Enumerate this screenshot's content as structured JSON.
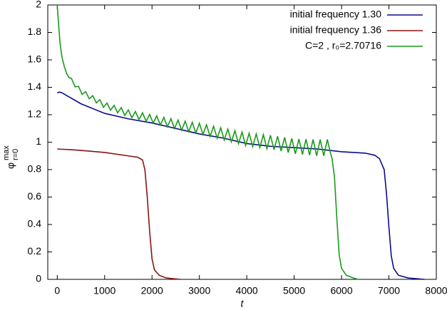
{
  "chart_data": {
    "type": "line",
    "xlabel": "t",
    "ylabel": {
      "base": "φ",
      "sup": "max",
      "sub": "r=0"
    },
    "xlim": [
      -200,
      8000
    ],
    "xticks": [
      0,
      1000,
      2000,
      3000,
      4000,
      5000,
      6000,
      7000,
      8000
    ],
    "ylim": [
      0,
      2
    ],
    "yticks": [
      0,
      0.2,
      0.4,
      0.6,
      0.8,
      1,
      1.2,
      1.4,
      1.6,
      1.8,
      2
    ],
    "legend": "top-right",
    "series": [
      {
        "name": "initial frequency  1.30",
        "color": "#0b0b8c",
        "x": [
          0,
          50,
          100,
          500,
          1000,
          1500,
          2000,
          2500,
          3000,
          3500,
          4000,
          4500,
          5000,
          5500,
          6000,
          6500,
          6700,
          6800,
          6900,
          6950,
          7000,
          7050,
          7100,
          7200,
          7400,
          7750
        ],
        "values": [
          1.36,
          1.365,
          1.36,
          1.28,
          1.21,
          1.17,
          1.14,
          1.1,
          1.06,
          1.03,
          0.99,
          0.97,
          0.96,
          0.95,
          0.93,
          0.92,
          0.905,
          0.88,
          0.8,
          0.62,
          0.38,
          0.17,
          0.08,
          0.03,
          0.01,
          0
        ]
      },
      {
        "name": "initial frequency  1.36",
        "color": "#8b1414",
        "x": [
          0,
          300,
          500,
          1000,
          1500,
          1700,
          1800,
          1850,
          1900,
          1950,
          2000,
          2050,
          2150,
          2300,
          2600
        ],
        "values": [
          0.95,
          0.945,
          0.94,
          0.925,
          0.9,
          0.89,
          0.87,
          0.8,
          0.6,
          0.35,
          0.15,
          0.07,
          0.03,
          0.01,
          0
        ]
      },
      {
        "name": "C=2 , r₀=2.70716",
        "color": "#1a991a",
        "x": [
          0,
          30,
          60,
          100,
          150,
          200,
          250,
          300,
          375,
          450,
          525,
          600,
          675,
          750,
          825,
          900,
          975,
          1050,
          1125,
          1200,
          1275,
          1350,
          1425,
          1500,
          1575,
          1650,
          1725,
          1800,
          1875,
          1950,
          2025,
          2100,
          2175,
          2250,
          2325,
          2400,
          2475,
          2550,
          2625,
          2700,
          2775,
          2850,
          2925,
          3000,
          3075,
          3150,
          3225,
          3300,
          3375,
          3450,
          3525,
          3600,
          3675,
          3750,
          3825,
          3900,
          3975,
          4050,
          4125,
          4200,
          4275,
          4350,
          4425,
          4500,
          4575,
          4650,
          4725,
          4800,
          4875,
          4950,
          5025,
          5100,
          5175,
          5250,
          5325,
          5400,
          5475,
          5550,
          5625,
          5700,
          5760,
          5800,
          5850,
          5900,
          5950,
          6000,
          6100,
          6250,
          6350
        ],
        "values": [
          2.0,
          1.85,
          1.72,
          1.62,
          1.55,
          1.5,
          1.47,
          1.465,
          1.404,
          1.406,
          1.348,
          1.368,
          1.317,
          1.339,
          1.286,
          1.31,
          1.254,
          1.285,
          1.233,
          1.268,
          1.214,
          1.252,
          1.195,
          1.235,
          1.178,
          1.224,
          1.165,
          1.214,
          1.152,
          1.203,
          1.139,
          1.192,
          1.125,
          1.181,
          1.112,
          1.171,
          1.099,
          1.161,
          1.087,
          1.153,
          1.077,
          1.145,
          1.067,
          1.138,
          1.056,
          1.127,
          1.042,
          1.116,
          1.029,
          1.105,
          1.016,
          1.095,
          1.003,
          1.084,
          0.989,
          1.073,
          0.976,
          1.065,
          0.968,
          1.06,
          0.961,
          1.055,
          0.953,
          1.05,
          0.945,
          1.043,
          0.935,
          1.035,
          0.924,
          1.027,
          0.915,
          1.023,
          0.911,
          1.022,
          0.906,
          1.02,
          0.901,
          1.019,
          0.9,
          1.02,
          0.93,
          0.88,
          0.75,
          0.45,
          0.18,
          0.08,
          0.03,
          0.01,
          0
        ]
      }
    ]
  }
}
